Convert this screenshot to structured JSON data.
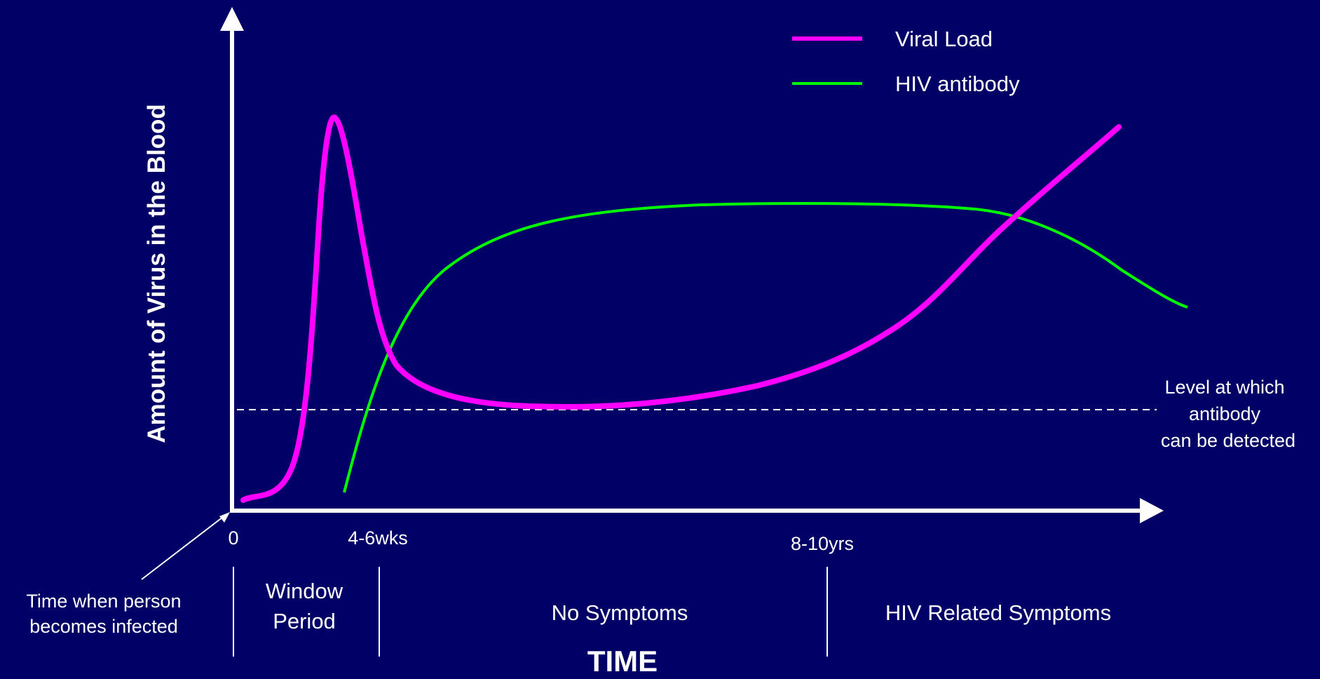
{
  "diagram": {
    "y_axis_label": "Amount of Virus in the Blood",
    "x_axis_label": "TIME",
    "ticks": {
      "zero": "0",
      "weeks": "4-6wks",
      "years": "8-10yrs"
    },
    "phases": {
      "window": [
        "Window",
        "Period"
      ],
      "no_symptoms": "No Symptoms",
      "related": "HIV Related Symptoms"
    },
    "infection_note": [
      "Time when person",
      "becomes infected"
    ],
    "threshold_note": [
      "Level at which",
      "antibody",
      "can be detected"
    ],
    "legend": {
      "viral_load": "Viral Load",
      "antibody": "HIV antibody"
    },
    "colors": {
      "background": "#000066",
      "axes": "#ffffff",
      "viral_load": "#ff00ff",
      "antibody": "#00ff00",
      "threshold": "#ffffff"
    }
  }
}
